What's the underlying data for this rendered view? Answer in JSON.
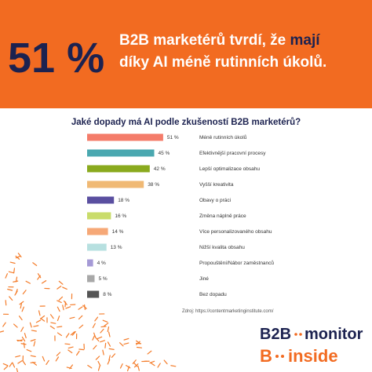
{
  "header": {
    "number": "51 %",
    "line1": "B2B marketérů tvrdí, že",
    "highlight": "mají",
    "line2": "díky AI méně rutinních úkolů."
  },
  "chart_data": {
    "type": "bar",
    "orientation": "horizontal",
    "title": "Jaké dopady má AI podle zkušeností B2B marketérů?",
    "categories": [
      "Méně rutinních úkolů",
      "Efektivnější pracovní procesy",
      "Lepší optimalizace obsahu",
      "Vyšší kreativita",
      "Obavy o práci",
      "Změna náplně práce",
      "Více personalizovaného obsahu",
      "Nižší kvalita obsahu",
      "Propouštění/Nábor zaměstnanců",
      "Jiné",
      "Bez dopadu"
    ],
    "values": [
      51,
      45,
      42,
      38,
      18,
      16,
      14,
      13,
      4,
      5,
      8
    ],
    "value_labels": [
      "51 %",
      "45 %",
      "42 %",
      "38 %",
      "18 %",
      "16 %",
      "14 %",
      "13 %",
      "4 %",
      "5 %",
      "8 %"
    ],
    "colors": [
      "#f47c6a",
      "#4aa8b0",
      "#8aaa1e",
      "#f0b974",
      "#5a4fa0",
      "#c9dc6a",
      "#f6a877",
      "#b7e0e0",
      "#a59ad6",
      "#a8a8a8",
      "#555555"
    ]
  },
  "source": "Zdroj: https://contentmarketinginstitute.com/",
  "logo": {
    "line1a": "B2B",
    "line1b": "monitor",
    "line2a": "B",
    "line2b": "inside"
  }
}
